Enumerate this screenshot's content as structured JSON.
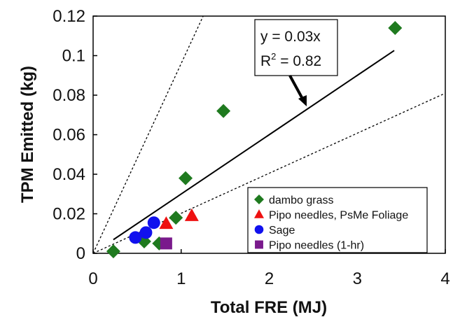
{
  "chart_data": {
    "type": "scatter",
    "xlabel": "Total FRE (MJ)",
    "ylabel": "TPM Emitted (kg)",
    "xlim": [
      0,
      4
    ],
    "ylim": [
      0,
      0.12
    ],
    "x_ticks": [
      0,
      1,
      2,
      3,
      4
    ],
    "x_tick_labels": [
      "0",
      "1",
      "2",
      "3",
      "4"
    ],
    "y_ticks": [
      0,
      0.02,
      0.04,
      0.06,
      0.08,
      0.1,
      0.12
    ],
    "y_tick_labels": [
      "0",
      "0.02",
      "0.04",
      "0.06",
      "0.08",
      "0.1",
      "0.12"
    ],
    "grid": false,
    "legend_position": "bottom-right",
    "series": [
      {
        "name": "dambo grass",
        "marker": "diamond",
        "color": "#1f7a1f",
        "points": [
          {
            "x": 0.23,
            "y": 0.001
          },
          {
            "x": 0.58,
            "y": 0.006
          },
          {
            "x": 0.75,
            "y": 0.005
          },
          {
            "x": 0.94,
            "y": 0.018
          },
          {
            "x": 1.05,
            "y": 0.038
          },
          {
            "x": 1.48,
            "y": 0.072
          },
          {
            "x": 3.43,
            "y": 0.114
          }
        ]
      },
      {
        "name": "Pipo needles, PsMe Foliage",
        "marker": "triangle",
        "color": "#ee1111",
        "points": [
          {
            "x": 0.83,
            "y": 0.015
          },
          {
            "x": 1.12,
            "y": 0.019
          }
        ]
      },
      {
        "name": "Sage",
        "marker": "circle",
        "color": "#1111ee",
        "points": [
          {
            "x": 0.48,
            "y": 0.008
          },
          {
            "x": 0.6,
            "y": 0.0105
          },
          {
            "x": 0.69,
            "y": 0.0155
          }
        ]
      },
      {
        "name": "Pipo needles (1-hr)",
        "marker": "square",
        "color": "#7a1a8c",
        "points": [
          {
            "x": 0.83,
            "y": 0.005
          }
        ]
      }
    ],
    "lines": [
      {
        "kind": "fit",
        "style": "solid",
        "color": "#000000",
        "x": [
          0.23,
          3.42
        ],
        "y": [
          0.0069,
          0.1026
        ]
      },
      {
        "kind": "bound",
        "style": "dotted",
        "color": "#000000",
        "x": [
          0,
          1.25
        ],
        "y": [
          0,
          0.12
        ]
      },
      {
        "kind": "bound",
        "style": "dotted",
        "color": "#000000",
        "x": [
          0,
          4
        ],
        "y": [
          0,
          0.081
        ]
      }
    ],
    "annotation": {
      "equation": "y = 0.03x",
      "r2_prefix": "R",
      "r2_sup": "2",
      "r2_suffix": " = 0.82",
      "arrow_target": {
        "x": 2.43,
        "y": 0.0725
      }
    }
  }
}
